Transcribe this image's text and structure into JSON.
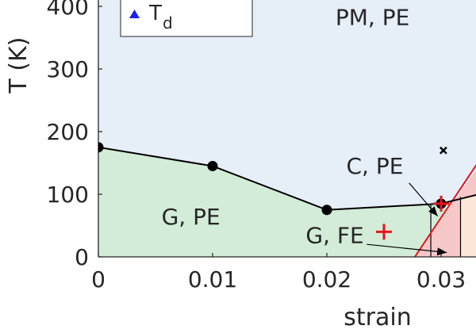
{
  "chart_data": {
    "type": "line",
    "xlabel": "strain",
    "ylabel": "T (K)",
    "xlim": [
      0,
      0.0333
    ],
    "ylim": [
      0,
      400
    ],
    "x_ticks": [
      0,
      0.01,
      0.02,
      0.03
    ],
    "x_tick_labels": [
      "0",
      "0.01",
      "0.02",
      "0.03"
    ],
    "y_ticks": [
      0,
      100,
      200,
      300,
      400
    ],
    "y_tick_labels": [
      "0",
      "100",
      "200",
      "300",
      "400"
    ],
    "grid": false,
    "series": [
      {
        "x": [
          0,
          0.01,
          0.02,
          0.03,
          0.0333
        ],
        "y": [
          175,
          145,
          75,
          85,
          100
        ],
        "marker": "circle",
        "color": "#000000"
      }
    ],
    "extra_points": [
      {
        "x": 0.03,
        "y": 85,
        "marker": "plus",
        "color": "#e8141c"
      },
      {
        "x": 0.025,
        "y": 40,
        "marker": "plus",
        "color": "#e8141c"
      },
      {
        "x": 0.0302,
        "y": 170,
        "marker": "x",
        "color": "#000000"
      }
    ],
    "red_boundary": {
      "x": [
        0.0277,
        0.0333
      ],
      "y": [
        0,
        145
      ],
      "color": "#e8141c"
    },
    "vertical_lines": [
      {
        "x": 0.0291,
        "y_top": 84
      },
      {
        "x": 0.0317,
        "y_top": 96
      }
    ],
    "regions": [
      {
        "name": "PM, PE",
        "label_x": 0.024,
        "label_y": 370,
        "color": "#e6eef8"
      },
      {
        "name": "G, PE",
        "label_x": 0.0081,
        "label_y": 52,
        "color": "#d3ecd8"
      },
      {
        "name": "C, PE",
        "label_x": 0.0242,
        "label_y": 133,
        "color": "#f6c8c8"
      },
      {
        "name": "G, FE",
        "label_x": 0.0207,
        "label_y": 22,
        "color": "#f6c8c8"
      },
      {
        "name": "",
        "color": "#fbe6d8"
      }
    ],
    "annotations": [
      {
        "text_region": "C, PE",
        "from": [
          0.0272,
          118
        ],
        "to": [
          0.0297,
          65
        ]
      },
      {
        "text_region": "G, FE",
        "from": [
          0.0235,
          20
        ],
        "to": [
          0.0305,
          7
        ]
      }
    ],
    "legend": {
      "placement": "top-left",
      "entries": [
        {
          "marker": "triangle",
          "color": "#1f1fe6",
          "label": "T",
          "subscript": "d"
        }
      ]
    }
  }
}
